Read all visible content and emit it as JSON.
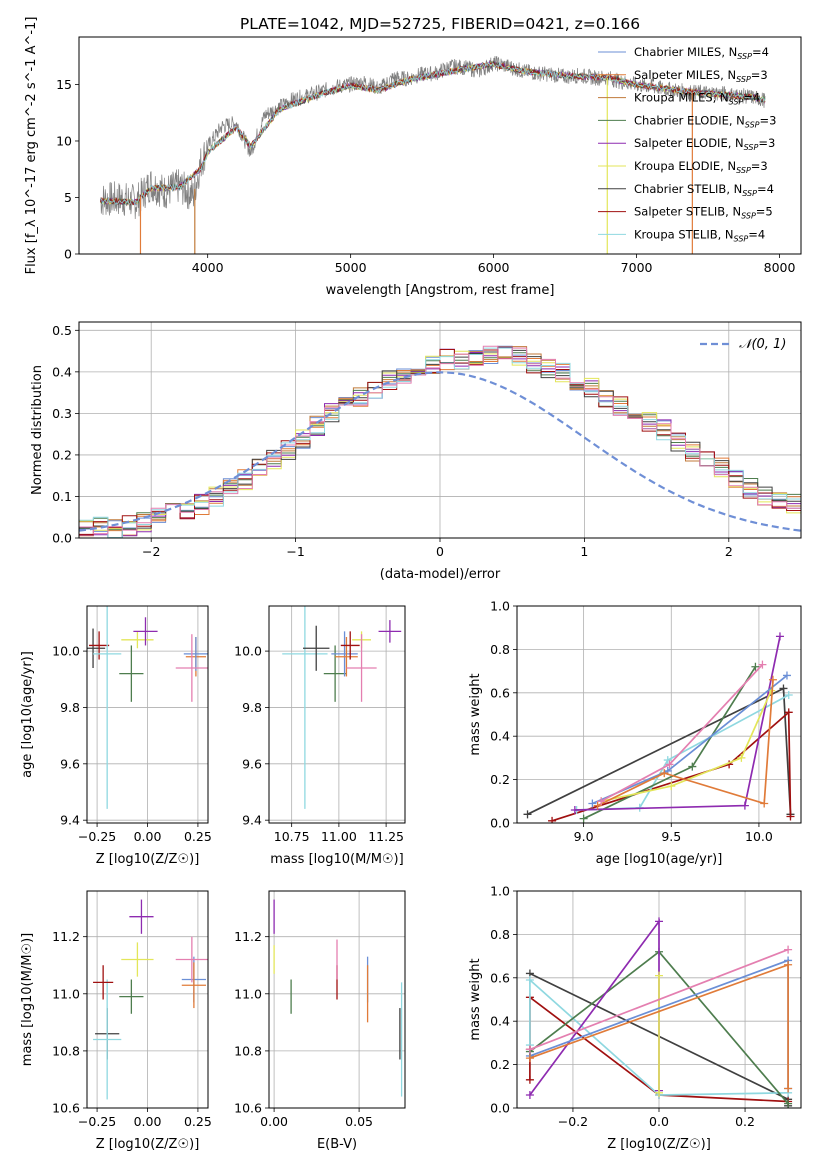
{
  "figure": {
    "title": "PLATE=1042, MJD=52725, FIBERID=0421, z=0.166"
  },
  "colors": {
    "Chabrier MILES": "#6b8fd6",
    "Salpeter MILES": "#e07b39",
    "Kroupa MILES": "#c07a3a",
    "Chabrier ELODIE": "#4e7d4e",
    "Salpeter ELODIE": "#8e2bb0",
    "Kroupa ELODIE": "#e3e65a",
    "Chabrier STELIB": "#404040",
    "Salpeter STELIB": "#a01010",
    "Kroupa STELIB": "#8fd8e0",
    "pink": "#e47fb0",
    "data": "#7f7f7f",
    "gaussian": "#6f8fd6"
  },
  "chart_data": [
    {
      "id": "spectrum",
      "type": "line",
      "xlabel": "wavelength [Angstrom, rest frame]",
      "ylabel": "Flux [f_λ 10^-17 erg cm^-2 s^-1 A^-1]",
      "xlim": [
        3100,
        8150
      ],
      "ylim": [
        0,
        19.2
      ],
      "xticks": [
        4000,
        5000,
        6000,
        7000,
        8000
      ],
      "yticks": [
        0,
        5,
        10,
        15
      ],
      "grid": false,
      "legend_position": "right",
      "legend": [
        {
          "label": "Chabrier MILES, N",
          "sub": "SSP",
          "tail": "=4",
          "color": "#6b8fd6"
        },
        {
          "label": "Salpeter MILES, N",
          "sub": "SSP",
          "tail": "=3",
          "color": "#e07b39"
        },
        {
          "label": "Kroupa MILES, N",
          "sub": "SSP",
          "tail": "=4",
          "color": "#c07a3a"
        },
        {
          "label": "Chabrier ELODIE, N",
          "sub": "SSP",
          "tail": "=3",
          "color": "#4e7d4e"
        },
        {
          "label": "Salpeter ELODIE, N",
          "sub": "SSP",
          "tail": "=3",
          "color": "#8e2bb0"
        },
        {
          "label": "Kroupa ELODIE, N",
          "sub": "SSP",
          "tail": "=3",
          "color": "#e3e65a"
        },
        {
          "label": "Chabrier STELIB, N",
          "sub": "SSP",
          "tail": "=4",
          "color": "#404040"
        },
        {
          "label": "Salpeter STELIB, N",
          "sub": "SSP",
          "tail": "=5",
          "color": "#a01010"
        },
        {
          "label": "Kroupa STELIB, N",
          "sub": "SSP",
          "tail": "=4",
          "color": "#8fd8e0"
        }
      ],
      "data_points": [
        [
          3250,
          4.8
        ],
        [
          3400,
          4.9
        ],
        [
          3500,
          4.6
        ],
        [
          3600,
          6.2
        ],
        [
          3700,
          5.5
        ],
        [
          3800,
          6.0
        ],
        [
          3900,
          5.2
        ],
        [
          3950,
          8.0
        ],
        [
          4000,
          9.5
        ],
        [
          4100,
          11.3
        ],
        [
          4200,
          11.6
        ],
        [
          4300,
          9.0
        ],
        [
          4400,
          12.3
        ],
        [
          4500,
          13.0
        ],
        [
          4600,
          13.7
        ],
        [
          4700,
          14.0
        ],
        [
          4800,
          14.4
        ],
        [
          4900,
          14.8
        ],
        [
          5000,
          15.0
        ],
        [
          5100,
          15.2
        ],
        [
          5200,
          14.6
        ],
        [
          5300,
          15.6
        ],
        [
          5400,
          15.5
        ],
        [
          5500,
          15.9
        ],
        [
          5600,
          16.0
        ],
        [
          5700,
          16.6
        ],
        [
          5800,
          16.5
        ],
        [
          5900,
          16.2
        ],
        [
          6000,
          16.9
        ],
        [
          6100,
          16.6
        ],
        [
          6200,
          16.2
        ],
        [
          6300,
          16.0
        ],
        [
          6400,
          15.9
        ],
        [
          6500,
          15.7
        ],
        [
          6600,
          15.8
        ],
        [
          6700,
          15.6
        ],
        [
          6800,
          15.6
        ],
        [
          6900,
          15.2
        ],
        [
          7000,
          15.0
        ],
        [
          7200,
          14.6
        ],
        [
          7400,
          14.3
        ],
        [
          7600,
          14.2
        ],
        [
          7800,
          13.9
        ],
        [
          7900,
          13.6
        ]
      ],
      "model_points": [
        [
          3250,
          4.7
        ],
        [
          3500,
          4.6
        ],
        [
          3600,
          5.8
        ],
        [
          3800,
          5.9
        ],
        [
          3950,
          7.5
        ],
        [
          4000,
          9.0
        ],
        [
          4200,
          11.2
        ],
        [
          4300,
          9.5
        ],
        [
          4500,
          12.8
        ],
        [
          4800,
          14.2
        ],
        [
          5000,
          14.9
        ],
        [
          5200,
          14.5
        ],
        [
          5400,
          15.4
        ],
        [
          5600,
          15.9
        ],
        [
          5800,
          16.4
        ],
        [
          6000,
          16.8
        ],
        [
          6200,
          16.2
        ],
        [
          6400,
          15.9
        ],
        [
          6600,
          15.7
        ],
        [
          6800,
          15.6
        ],
        [
          7000,
          15.0
        ],
        [
          7400,
          14.3
        ],
        [
          7800,
          13.9
        ],
        [
          7900,
          13.6
        ]
      ]
    },
    {
      "id": "residuals",
      "type": "histogram",
      "xlabel": "(data-model)/error",
      "ylabel": "Normed distribution",
      "xlim": [
        -2.5,
        2.5
      ],
      "ylim": [
        0,
        0.52
      ],
      "xticks": [
        -2,
        -1,
        0,
        1,
        2
      ],
      "yticks": [
        0.0,
        0.1,
        0.2,
        0.3,
        0.4,
        0.5
      ],
      "grid": true,
      "legend_position": "top-right",
      "legend_label": "𝒩(0, 1)",
      "bin_edges_start": -2.5,
      "bin_width": 0.1,
      "base_hist": [
        0.03,
        0.03,
        0.02,
        0.03,
        0.04,
        0.05,
        0.06,
        0.07,
        0.08,
        0.1,
        0.12,
        0.14,
        0.17,
        0.19,
        0.21,
        0.24,
        0.27,
        0.3,
        0.32,
        0.34,
        0.35,
        0.38,
        0.39,
        0.4,
        0.42,
        0.43,
        0.43,
        0.44,
        0.44,
        0.45,
        0.44,
        0.42,
        0.41,
        0.4,
        0.38,
        0.36,
        0.34,
        0.32,
        0.3,
        0.28,
        0.26,
        0.23,
        0.21,
        0.19,
        0.17,
        0.14,
        0.12,
        0.1,
        0.09,
        0.08,
        0.07,
        0.06,
        0.06,
        0.05,
        0.04,
        0.04,
        0.03,
        0.03,
        0.03,
        0.02
      ]
    },
    {
      "id": "age-vs-Z",
      "type": "errorbar",
      "xlabel": "Z [log10(Z/Z☉)]",
      "ylabel": "age  [log10(age/yr)]",
      "xlim": [
        -0.3,
        0.3
      ],
      "ylim": [
        9.39,
        10.16
      ],
      "xticks": [
        -0.25,
        0.0,
        0.25
      ],
      "yticks": [
        9.4,
        9.6,
        9.8,
        10.0
      ],
      "points": [
        {
          "x": -0.27,
          "y": 10.01,
          "xerr": 0.06,
          "yerr": 0.07,
          "model": "Chabrier STELIB"
        },
        {
          "x": -0.24,
          "y": 10.02,
          "xerr": 0.05,
          "yerr": 0.05,
          "model": "Salpeter STELIB"
        },
        {
          "x": -0.2,
          "y": 9.99,
          "xerr": 0.07,
          "yerr": 0.55,
          "model": "Kroupa STELIB"
        },
        {
          "x": -0.08,
          "y": 9.92,
          "xerr": 0.06,
          "yerr": 0.1,
          "model": "Chabrier ELODIE"
        },
        {
          "x": -0.05,
          "y": 10.04,
          "xerr": 0.08,
          "yerr": 0.03,
          "model": "Kroupa ELODIE"
        },
        {
          "x": -0.01,
          "y": 10.07,
          "xerr": 0.06,
          "yerr": 0.05,
          "model": "Salpeter ELODIE"
        },
        {
          "x": 0.24,
          "y": 9.98,
          "xerr": 0.05,
          "yerr": 0.07,
          "model": "Salpeter MILES"
        },
        {
          "x": 0.24,
          "y": 9.99,
          "xerr": 0.06,
          "yerr": 0.06,
          "model": "Chabrier MILES"
        },
        {
          "x": 0.22,
          "y": 9.94,
          "xerr": 0.08,
          "yerr": 0.12,
          "model": "pink"
        }
      ]
    },
    {
      "id": "age-vs-mass",
      "type": "errorbar",
      "xlabel": "mass [log10(M/M☉)]",
      "ylabel": "",
      "xlim": [
        10.63,
        11.35
      ],
      "ylim": [
        9.39,
        10.16
      ],
      "xticks": [
        10.75,
        11.0,
        11.25
      ],
      "yticks": [
        9.4,
        9.6,
        9.8,
        10.0
      ],
      "points": [
        {
          "x": 10.82,
          "y": 9.99,
          "xerr": 0.12,
          "yerr": 0.55,
          "model": "Kroupa STELIB"
        },
        {
          "x": 10.88,
          "y": 10.01,
          "xerr": 0.07,
          "yerr": 0.08,
          "model": "Chabrier STELIB"
        },
        {
          "x": 10.98,
          "y": 9.92,
          "xerr": 0.06,
          "yerr": 0.1,
          "model": "Chabrier ELODIE"
        },
        {
          "x": 11.03,
          "y": 9.99,
          "xerr": 0.07,
          "yerr": 0.08,
          "model": "Chabrier MILES"
        },
        {
          "x": 11.04,
          "y": 9.98,
          "xerr": 0.06,
          "yerr": 0.07,
          "model": "Salpeter MILES"
        },
        {
          "x": 11.06,
          "y": 10.02,
          "xerr": 0.05,
          "yerr": 0.05,
          "model": "Salpeter STELIB"
        },
        {
          "x": 11.12,
          "y": 10.04,
          "xerr": 0.05,
          "yerr": 0.03,
          "model": "Kroupa ELODIE"
        },
        {
          "x": 11.12,
          "y": 9.94,
          "xerr": 0.08,
          "yerr": 0.12,
          "model": "pink"
        },
        {
          "x": 11.27,
          "y": 10.07,
          "xerr": 0.06,
          "yerr": 0.04,
          "model": "Salpeter ELODIE"
        }
      ]
    },
    {
      "id": "weights-vs-age",
      "type": "line",
      "xlabel": "age  [log10(age/yr)]",
      "ylabel": "mass weight",
      "xlim": [
        8.62,
        10.24
      ],
      "ylim": [
        0,
        1.0
      ],
      "xticks": [
        9.0,
        9.5,
        10.0
      ],
      "yticks": [
        0.0,
        0.2,
        0.4,
        0.6,
        0.8,
        1.0
      ],
      "grid": true,
      "series": [
        {
          "model": "Chabrier STELIB",
          "x": [
            8.68,
            10.14,
            10.18
          ],
          "y": [
            0.04,
            0.62,
            0.04
          ]
        },
        {
          "model": "Salpeter STELIB",
          "x": [
            8.82,
            9.83,
            10.17,
            10.18
          ],
          "y": [
            0.01,
            0.27,
            0.51,
            0.03
          ]
        },
        {
          "model": "Kroupa STELIB",
          "x": [
            8.96,
            9.32,
            9.48,
            10.17
          ],
          "y": [
            0.06,
            0.07,
            0.29,
            0.59
          ]
        },
        {
          "model": "Chabrier ELODIE",
          "x": [
            9.0,
            9.62,
            9.98
          ],
          "y": [
            0.02,
            0.26,
            0.72
          ]
        },
        {
          "model": "Salpeter ELODIE",
          "x": [
            8.95,
            9.92,
            10.12
          ],
          "y": [
            0.06,
            0.08,
            0.86
          ]
        },
        {
          "model": "Kroupa ELODIE",
          "x": [
            9.1,
            9.5,
            9.9,
            10.07
          ],
          "y": [
            0.1,
            0.17,
            0.3,
            0.61
          ]
        },
        {
          "model": "Chabrier MILES",
          "x": [
            9.05,
            9.48,
            10.16
          ],
          "y": [
            0.09,
            0.24,
            0.68
          ]
        },
        {
          "model": "Salpeter MILES",
          "x": [
            9.08,
            9.46,
            10.03,
            10.08
          ],
          "y": [
            0.08,
            0.23,
            0.09,
            0.66
          ]
        },
        {
          "model": "pink",
          "x": [
            9.1,
            9.49,
            10.02
          ],
          "y": [
            0.1,
            0.27,
            0.73
          ]
        }
      ]
    },
    {
      "id": "mass-vs-Z",
      "type": "errorbar",
      "xlabel": "Z [log10(Z/Z☉)]",
      "ylabel": "mass [log10(M/M☉)]",
      "xlim": [
        -0.3,
        0.3
      ],
      "ylim": [
        10.6,
        11.36
      ],
      "xticks": [
        -0.25,
        0.0,
        0.25
      ],
      "yticks": [
        10.6,
        10.8,
        11.0,
        11.2
      ],
      "points": [
        {
          "x": -0.2,
          "y": 10.86,
          "xerr": 0.06,
          "yerr": 0.09,
          "model": "Chabrier STELIB"
        },
        {
          "x": -0.2,
          "y": 10.84,
          "xerr": 0.07,
          "yerr": 0.21,
          "model": "Kroupa STELIB"
        },
        {
          "x": -0.22,
          "y": 11.04,
          "xerr": 0.05,
          "yerr": 0.06,
          "model": "Salpeter STELIB"
        },
        {
          "x": -0.08,
          "y": 10.99,
          "xerr": 0.06,
          "yerr": 0.06,
          "model": "Chabrier ELODIE"
        },
        {
          "x": -0.05,
          "y": 11.12,
          "xerr": 0.08,
          "yerr": 0.06,
          "model": "Kroupa ELODIE"
        },
        {
          "x": -0.03,
          "y": 11.27,
          "xerr": 0.06,
          "yerr": 0.06,
          "model": "Salpeter ELODIE"
        },
        {
          "x": 0.23,
          "y": 11.05,
          "xerr": 0.06,
          "yerr": 0.08,
          "model": "Chabrier MILES"
        },
        {
          "x": 0.23,
          "y": 11.03,
          "xerr": 0.06,
          "yerr": 0.08,
          "model": "Salpeter MILES"
        },
        {
          "x": 0.22,
          "y": 11.12,
          "xerr": 0.08,
          "yerr": 0.08,
          "model": "pink"
        }
      ]
    },
    {
      "id": "mass-vs-ebv",
      "type": "errorbar",
      "xlabel": "E(B-V)",
      "ylabel": "",
      "xlim": [
        -0.003,
        0.077
      ],
      "ylim": [
        10.6,
        11.36
      ],
      "xticks": [
        0.0,
        0.05
      ],
      "yticks": [
        10.6,
        10.8,
        11.0,
        11.2
      ],
      "points": [
        {
          "x": 0.0,
          "y": 11.27,
          "xerr": 0,
          "yerr": 0.06,
          "model": "Salpeter ELODIE"
        },
        {
          "x": 0.0,
          "y": 11.12,
          "xerr": 0,
          "yerr": 0.05,
          "model": "Kroupa ELODIE"
        },
        {
          "x": 0.01,
          "y": 10.99,
          "xerr": 0,
          "yerr": 0.06,
          "model": "Chabrier ELODIE"
        },
        {
          "x": 0.037,
          "y": 11.04,
          "xerr": 0,
          "yerr": 0.06,
          "model": "Salpeter STELIB"
        },
        {
          "x": 0.037,
          "y": 11.12,
          "xerr": 0,
          "yerr": 0.07,
          "model": "pink"
        },
        {
          "x": 0.055,
          "y": 11.05,
          "xerr": 0,
          "yerr": 0.08,
          "model": "Chabrier MILES"
        },
        {
          "x": 0.055,
          "y": 11.0,
          "xerr": 0,
          "yerr": 0.1,
          "model": "Salpeter MILES"
        },
        {
          "x": 0.074,
          "y": 10.86,
          "xerr": 0,
          "yerr": 0.09,
          "model": "Chabrier STELIB"
        },
        {
          "x": 0.075,
          "y": 10.84,
          "xerr": 0,
          "yerr": 0.2,
          "model": "Kroupa STELIB"
        }
      ]
    },
    {
      "id": "weights-vs-Z",
      "type": "line",
      "xlabel": "Z [log10(Z/Z☉)]",
      "ylabel": "mass weight",
      "xlim": [
        -0.33,
        0.33
      ],
      "ylim": [
        0,
        1.0
      ],
      "xticks": [
        -0.2,
        0.0,
        0.2
      ],
      "yticks": [
        0.0,
        0.2,
        0.4,
        0.6,
        0.8,
        1.0
      ],
      "grid": true,
      "series": [
        {
          "model": "Chabrier STELIB",
          "x": [
            -0.3,
            0.3,
            0.3
          ],
          "y": [
            0.62,
            0.04,
            0.01
          ]
        },
        {
          "model": "Salpeter STELIB",
          "x": [
            -0.3,
            -0.3,
            -0.3,
            0.0,
            0.3
          ],
          "y": [
            0.13,
            0.27,
            0.51,
            0.06,
            0.03
          ]
        },
        {
          "model": "Kroupa STELIB",
          "x": [
            -0.3,
            -0.3,
            0.0,
            0.3
          ],
          "y": [
            0.29,
            0.59,
            0.06,
            0.07
          ]
        },
        {
          "model": "Chabrier ELODIE",
          "x": [
            -0.3,
            0.0,
            0.3
          ],
          "y": [
            0.26,
            0.72,
            0.02
          ]
        },
        {
          "model": "Salpeter ELODIE",
          "x": [
            -0.3,
            0.0,
            0.0
          ],
          "y": [
            0.06,
            0.86,
            0.08
          ]
        },
        {
          "model": "Kroupa ELODIE",
          "x": [
            0.0,
            0.0
          ],
          "y": [
            0.07,
            0.61
          ]
        },
        {
          "model": "Chabrier MILES",
          "x": [
            -0.3,
            0.3,
            0.3
          ],
          "y": [
            0.24,
            0.68,
            0.09
          ]
        },
        {
          "model": "Salpeter MILES",
          "x": [
            -0.3,
            0.3,
            0.3
          ],
          "y": [
            0.23,
            0.66,
            0.09
          ]
        },
        {
          "model": "pink",
          "x": [
            -0.3,
            0.3
          ],
          "y": [
            0.27,
            0.73
          ]
        }
      ]
    }
  ]
}
